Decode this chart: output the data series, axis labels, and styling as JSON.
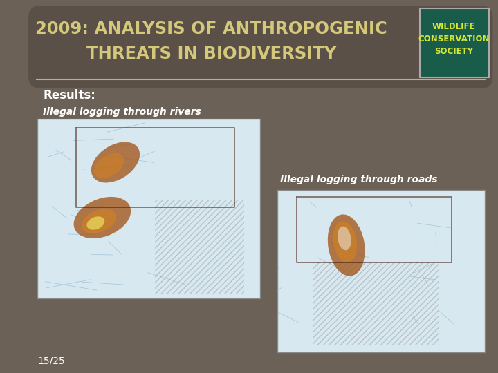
{
  "title_line1": "2009: ANALYSIS OF ANTHROPOGENIC",
  "title_line2": "THREATS IN BIODIVERSITY",
  "title_color": "#d4c97a",
  "background_color": "#6b6157",
  "results_label": "Results:",
  "label1": "Illegal logging through rivers",
  "label2": "Illegal logging through roads",
  "slide_number": "15/25",
  "divider_color": "#c8b84a",
  "text_color": "#ffffff",
  "wcs_bg_color": "#1a5c4a",
  "wcs_text_color": "#d4e832",
  "wcs_line1": "WILDLIFE",
  "wcs_line2": "CONSERVATION",
  "wcs_line3": "SOCIETY",
  "label_color": "#ffffff",
  "results_color": "#ffffff"
}
